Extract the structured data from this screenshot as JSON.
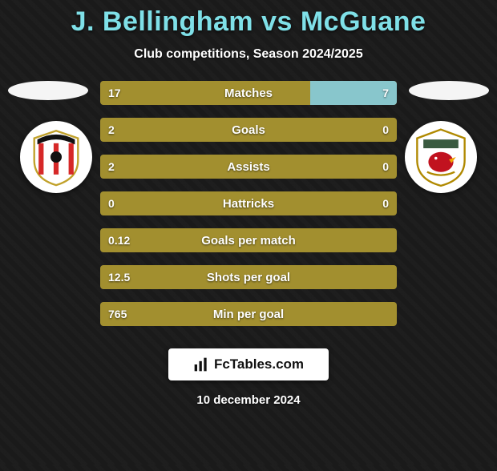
{
  "title": "J. Bellingham vs McGuane",
  "subtitle": "Club competitions, Season 2024/2025",
  "footer_date": "10 december 2024",
  "footer_brand": "FcTables.com",
  "colors": {
    "background": "#1a1a1a",
    "title": "#7fe0e8",
    "left_bar": "#a28f2f",
    "right_bar": "#88c6cc",
    "text": "#ffffff"
  },
  "club_left": {
    "name": "Sunderland",
    "crest_bg": "#ffffff",
    "stripe_a": "#d62828",
    "stripe_b": "#ffffff",
    "accent": "#111111"
  },
  "club_right": {
    "name": "Bristol City",
    "crest_bg": "#ffffff",
    "robin": "#c1121f",
    "accent": "#3a5a40"
  },
  "stats": [
    {
      "label": "Matches",
      "left_val": "17",
      "right_val": "7",
      "left_pct": 70.8,
      "right_pct": 29.2
    },
    {
      "label": "Goals",
      "left_val": "2",
      "right_val": "0",
      "left_pct": 100,
      "right_pct": 0
    },
    {
      "label": "Assists",
      "left_val": "2",
      "right_val": "0",
      "left_pct": 100,
      "right_pct": 0
    },
    {
      "label": "Hattricks",
      "left_val": "0",
      "right_val": "0",
      "left_pct": 100,
      "right_pct": 0
    },
    {
      "label": "Goals per match",
      "left_val": "0.12",
      "right_val": "",
      "left_pct": 100,
      "right_pct": 0
    },
    {
      "label": "Shots per goal",
      "left_val": "12.5",
      "right_val": "",
      "left_pct": 100,
      "right_pct": 0
    },
    {
      "label": "Min per goal",
      "left_val": "765",
      "right_val": "",
      "left_pct": 100,
      "right_pct": 0
    }
  ]
}
